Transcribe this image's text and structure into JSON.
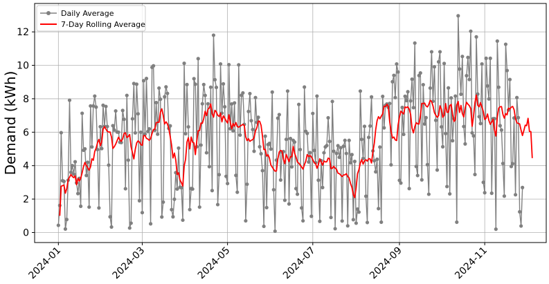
{
  "chart_data": {
    "type": "line",
    "title": "",
    "xlabel": "",
    "ylabel": "Demand (kWh)",
    "xlim": [
      "2023-12-15",
      "2024-12-15"
    ],
    "ylim": [
      -0.6,
      13.7
    ],
    "grid": true,
    "legend_position": "top-left",
    "x_ticks": [
      "2024-01",
      "2024-03",
      "2024-05",
      "2024-07",
      "2024-09",
      "2024-11"
    ],
    "y_ticks": [
      0,
      2,
      4,
      6,
      8,
      10,
      12
    ],
    "series": [
      {
        "name": "Daily Average",
        "color": "#808080",
        "marker": "circle",
        "start_date": "2024-01-01",
        "values": [
          0.43,
          1.62,
          5.97,
          3.1,
          3.06,
          0.21,
          0.78,
          3.13,
          7.91,
          3.6,
          4.0,
          3.49,
          4.23,
          2.97,
          2.33,
          3.24,
          1.57,
          7.13,
          4.92,
          5.0,
          3.41,
          4.2,
          1.52,
          7.57,
          5.12,
          7.57,
          8.16,
          7.5,
          4.96,
          1.47,
          6.33,
          5.02,
          7.61,
          6.35,
          7.54,
          6.34,
          4.03,
          0.94,
          0.33,
          6.39,
          6.13,
          7.27,
          6.01,
          6.0,
          5.4,
          5.38,
          7.3,
          6.77,
          2.62,
          8.2,
          4.33,
          0.27,
          0.56,
          6.8,
          8.91,
          5.96,
          8.87,
          7.1,
          1.9,
          6.0,
          1.19,
          9.08,
          5.88,
          9.21,
          6.04,
          6.2,
          0.52,
          9.88,
          9.97,
          6.12,
          7.77,
          5.88,
          8.64,
          7.97,
          0.93,
          1.82,
          8.12,
          8.71,
          8.32,
          6.23,
          6.38,
          1.37,
          0.94,
          1.99,
          3.58,
          2.6,
          5.05,
          2.71,
          2.68,
          0.74,
          10.12,
          5.91,
          8.85,
          6.32,
          1.37,
          2.63,
          2.6,
          9.2,
          8.87,
          5.13,
          10.4,
          1.52,
          5.23,
          7.7,
          8.85,
          8.2,
          4.77,
          7.7,
          3.94,
          8.69,
          2.51,
          11.8,
          9.14,
          8.68,
          1.67,
          3.46,
          10.08,
          7.14,
          8.89,
          7.52,
          3.36,
          2.93,
          10.04,
          6.21,
          7.69,
          6.08,
          7.75,
          3.42,
          2.41,
          10.03,
          5.83,
          8.21,
          8.35,
          6.47,
          0.7,
          2.89,
          7.24,
          8.31,
          6.69,
          6.16,
          4.86,
          8.07,
          6.59,
          6.89,
          5.13,
          4.71,
          3.7,
          0.37,
          5.76,
          1.49,
          5.26,
          5.33,
          4.99,
          8.4,
          2.56,
          0.08,
          4.33,
          6.84,
          7.05,
          3.14,
          4.81,
          4.84,
          1.93,
          5.57,
          8.46,
          1.71,
          5.62,
          3.93,
          5.51,
          5.41,
          2.63,
          2.29,
          7.66,
          4.96,
          1.47,
          0.7,
          8.7,
          6.05,
          5.93,
          4.22,
          4.78,
          0.97,
          7.12,
          4.91,
          4.18,
          8.16,
          3.13,
          0.67,
          4.3,
          2.69,
          4.77,
          5.12,
          5.2,
          6.86,
          5.45,
          0.9,
          7.84,
          4.86,
          0.23,
          4.73,
          5.19,
          4.5,
          5.07,
          0.69,
          5.16,
          5.51,
          4.73,
          0.4,
          5.51,
          4.17,
          4.66,
          0.77,
          4.25,
          0.56,
          1.4,
          1.22,
          8.46,
          5.57,
          4.43,
          6.35,
          2.17,
          0.6,
          5.69,
          6.37,
          8.11,
          4.88,
          4.29,
          3.63,
          4.38,
          1.43,
          5.11,
          0.62,
          8.14,
          6.26,
          7.61,
          7.69,
          7.49,
          7.72,
          4.05,
          9.02,
          9.4,
          8.07,
          10.08,
          9.6,
          3.12,
          2.96,
          7.48,
          5.87,
          8.15,
          7.89,
          8.42,
          2.63,
          7.87,
          9.17,
          7.47,
          11.33,
          3.95,
          3.41,
          9.39,
          9.54,
          3.15,
          8.84,
          6.49,
          6.87,
          4.06,
          2.29,
          8.64,
          10.81,
          7.85,
          9.91,
          6.71,
          3.74,
          10.21,
          10.81,
          6.32,
          5.13,
          10.11,
          5.92,
          2.75,
          8.65,
          2.31,
          8.05,
          5.49,
          6.81,
          8.16,
          0.62,
          12.96,
          9.78,
          8.27,
          10.53,
          6.34,
          5.3,
          9.38,
          10.47,
          9.15,
          12.04,
          5.96,
          5.78,
          3.47,
          11.7,
          8.28,
          6.93,
          6.52,
          10.08,
          3.0,
          2.38,
          10.42,
          8.77,
          7.99,
          10.42,
          2.35,
          6.81,
          6.81,
          0.2,
          11.45,
          8.69,
          6.39,
          6.13,
          4.13,
          2.18,
          11.26,
          9.69,
          7.33,
          9.15,
          3.95,
          4.12,
          6.85,
          2.26,
          8.07,
          6.87,
          1.24,
          0.39,
          2.69
        ]
      },
      {
        "name": "7-Day Rolling Average",
        "color": "#ff0000",
        "marker": "none",
        "start_date": "2024-01-02",
        "values": [
          1.0,
          2.77,
          2.8,
          2.84,
          2.35,
          2.62,
          3.15,
          3.31,
          3.47,
          3.35,
          3.28,
          3.39,
          2.86,
          3.24,
          3.08,
          3.25,
          3.57,
          3.95,
          4.19,
          4.02,
          3.87,
          3.73,
          3.93,
          4.41,
          4.32,
          4.84,
          5.05,
          5.37,
          5.57,
          5.19,
          5.41,
          6.18,
          6.33,
          6.18,
          6.05,
          6.01,
          6.01,
          5.71,
          5.03,
          5.13,
          5.29,
          5.49,
          5.7,
          5.54,
          5.45,
          5.61,
          5.93,
          5.96,
          5.69,
          5.74,
          5.86,
          5.13,
          4.77,
          4.4,
          4.97,
          5.36,
          5.48,
          5.41,
          5.25,
          5.22,
          5.79,
          5.8,
          5.63,
          5.59,
          5.51,
          5.62,
          5.92,
          6.16,
          6.18,
          6.57,
          6.59,
          6.59,
          7.2,
          7.4,
          7.0,
          6.49,
          6.62,
          6.5,
          6.21,
          5.74,
          5.22,
          4.46,
          4.75,
          4.32,
          3.47,
          3.57,
          3.15,
          2.98,
          2.78,
          3.98,
          4.38,
          5.41,
          5.67,
          5.0,
          5.71,
          5.4,
          5.36,
          4.66,
          5.46,
          6.09,
          6.09,
          6.55,
          6.53,
          6.82,
          7.25,
          6.99,
          7.37,
          7.45,
          7.69,
          7.1,
          6.9,
          7.31,
          7.21,
          7.01,
          6.94,
          7.14,
          6.62,
          6.98,
          6.84,
          6.68,
          6.55,
          7.04,
          6.59,
          6.2,
          6.52,
          6.36,
          6.58,
          6.33,
          6.3,
          6.37,
          6.41,
          6.47,
          6.41,
          5.73,
          5.5,
          5.61,
          5.45,
          5.52,
          5.55,
          5.67,
          6.08,
          6.27,
          6.66,
          6.65,
          6.41,
          5.77,
          4.96,
          4.97,
          4.57,
          4.65,
          4.45,
          4.04,
          3.91,
          3.78,
          3.67,
          3.68,
          4.4,
          4.82,
          4.91,
          4.87,
          4.37,
          4.12,
          4.67,
          4.45,
          4.24,
          4.54,
          4.53,
          5.15,
          4.74,
          4.51,
          4.21,
          4.15,
          4.03,
          3.92,
          3.79,
          4.05,
          4.27,
          4.66,
          4.54,
          4.61,
          4.52,
          4.36,
          4.17,
          4.14,
          3.84,
          4.05,
          4.41,
          4.23,
          4.03,
          4.28,
          4.22,
          4.23,
          4.45,
          4.41,
          3.83,
          3.84,
          3.96,
          3.85,
          3.78,
          3.55,
          3.52,
          3.43,
          3.35,
          3.44,
          3.45,
          3.52,
          3.34,
          3.27,
          2.93,
          2.7,
          2.26,
          2.09,
          2.67,
          3.52,
          3.76,
          4.15,
          4.36,
          4.09,
          4.29,
          4.35,
          4.27,
          4.42,
          4.4,
          4.16,
          4.83,
          5.33,
          6.15,
          6.69,
          6.93,
          6.8,
          6.96,
          7.1,
          7.55,
          7.53,
          7.67,
          7.55,
          6.64,
          6.07,
          5.65,
          5.71,
          5.54,
          5.5,
          6.42,
          6.9,
          7.26,
          7.17,
          7.09,
          7.51,
          7.47,
          7.52,
          7.37,
          7.06,
          6.24,
          5.96,
          6.33,
          6.57,
          6.5,
          6.49,
          7.01,
          7.72,
          7.72,
          7.74,
          7.57,
          7.51,
          7.66,
          7.91,
          7.83,
          7.57,
          7.17,
          7.02,
          6.89,
          6.99,
          7.58,
          7.38,
          6.89,
          7.01,
          7.71,
          7.19,
          7.19,
          7.59,
          7.66,
          7.05,
          6.64,
          6.74,
          7.62,
          7.84,
          7.18,
          7.6,
          7.11,
          6.91,
          7.45,
          7.79,
          7.67,
          7.59,
          7.41,
          6.35,
          6.96,
          7.77,
          8.22,
          7.61,
          7.52,
          7.77,
          7.52,
          7.22,
          6.76,
          6.84,
          7.09,
          6.69,
          6.47,
          6.61,
          6.78,
          6.12,
          5.77,
          6.91,
          7.44,
          7.52,
          7.53,
          7.07,
          6.84,
          7.11,
          7.04,
          7.44,
          7.39,
          7.5,
          7.54,
          7.35,
          6.81,
          6.56,
          6.53,
          6.49,
          6.12,
          5.8,
          6.1,
          6.42,
          6.39,
          6.83,
          6.04,
          6.04,
          4.45
        ]
      }
    ]
  }
}
